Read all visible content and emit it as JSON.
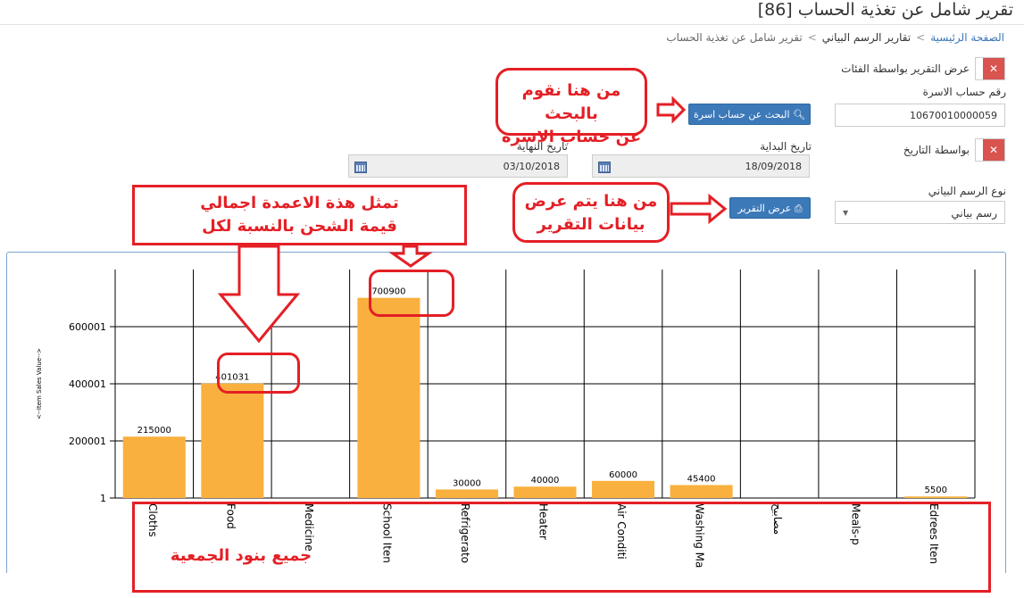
{
  "page": {
    "title": "تقرير شامل عن تغذية الحساب [86]"
  },
  "breadcrumb": {
    "home": "الصفحة الرئيسية",
    "charts": "تقارير الرسم البياني",
    "current": "تقرير شامل عن تغذية الحساب"
  },
  "form": {
    "by_category_label": "عرض التقرير بواسطة الفئات",
    "family_account_label": "رقم حساب الاسرة",
    "family_account_value": "10670010000059",
    "search_button": "البحث عن حساب اسرة",
    "by_date_label": "بواسطة التاريخ",
    "start_date_label": "تاريخ البداية",
    "start_date_value": "18/09/2018",
    "end_date_label": "تاريخ النهاية",
    "end_date_value": "03/10/2018",
    "chart_type_label": "نوع الرسم البياني",
    "chart_type_value": "رسم بياني",
    "show_report_button": "عرض التقرير"
  },
  "annotations": {
    "search_note": [
      "من هنا نقوم بالبحث",
      "عن حساب الاسرة"
    ],
    "report_note": [
      "من هنا يتم عرض",
      "بيانات التقرير"
    ],
    "bars_note": [
      "تمثل هذة الاعمدة اجمالي",
      "قيمة الشحن بالنسبة لكل"
    ],
    "items_note": "جميع بنود الجمعية"
  },
  "colors": {
    "bar": "#f9b03e",
    "annotation": "#e41f25",
    "button": "#3c79b8",
    "toggle": "#d9534f"
  },
  "chart_data": {
    "type": "bar",
    "ylabel": "<--Item Sales Value-->",
    "yticks": [
      "1",
      "200001",
      "400001",
      "600001"
    ],
    "ylim": [
      0,
      800000
    ],
    "grid": true,
    "categories": [
      "Cloths",
      "Food",
      "Medicine",
      "School Iten",
      "Refrigerato",
      "Heater",
      "Air Conditi",
      "Washing Ma",
      "مصابيح",
      "Meals-p",
      "Edrees Iten"
    ],
    "values": [
      215000,
      401031,
      0,
      700900,
      30000,
      40000,
      60000,
      45400,
      0,
      0,
      5500
    ],
    "labels": [
      "215000",
      "401031",
      "",
      "700900",
      "30000",
      "40000",
      "60000",
      "45400",
      "",
      "",
      "5500"
    ]
  }
}
